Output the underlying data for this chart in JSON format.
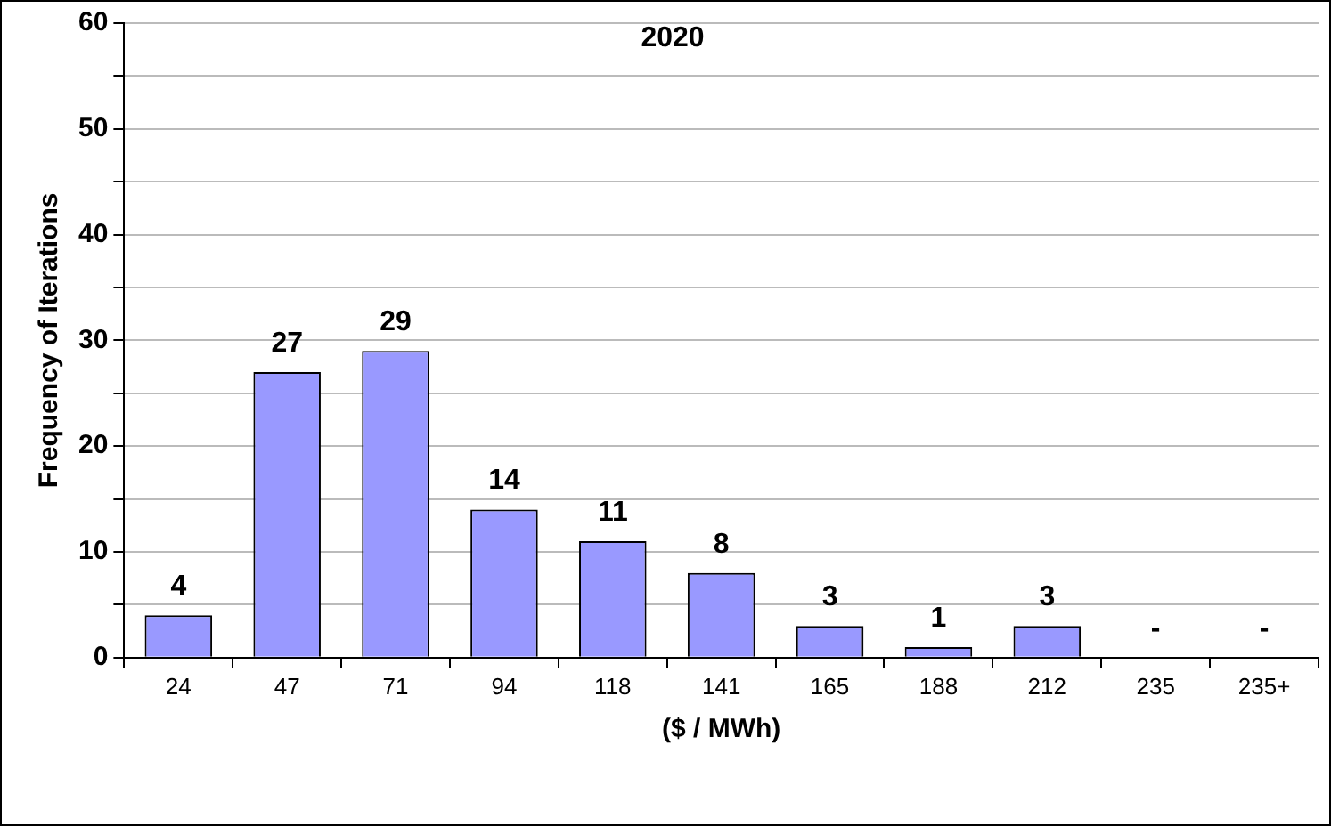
{
  "chart_data": {
    "type": "bar",
    "title": "2020",
    "xlabel": "($ / MWh)",
    "ylabel": "Frequency of Iterations",
    "categories": [
      "24",
      "47",
      "71",
      "94",
      "118",
      "141",
      "165",
      "188",
      "212",
      "235",
      "235+"
    ],
    "values": [
      4,
      27,
      29,
      14,
      11,
      8,
      3,
      1,
      3,
      0,
      0
    ],
    "value_labels": [
      "4",
      "27",
      "29",
      "14",
      "11",
      "8",
      "3",
      "1",
      "3",
      "-",
      "-"
    ],
    "color": "#9999ff",
    "ylim": [
      0,
      60
    ],
    "yticks": [
      0,
      {
        "value": 5,
        "label": null
      },
      10,
      {
        "value": 15,
        "label": null
      },
      20,
      {
        "value": 25,
        "label": null
      },
      30,
      {
        "value": 35,
        "label": null
      },
      40,
      {
        "value": 45,
        "label": null
      },
      50,
      {
        "value": 55,
        "label": null
      },
      60
    ],
    "grid": "y",
    "legend": false
  }
}
